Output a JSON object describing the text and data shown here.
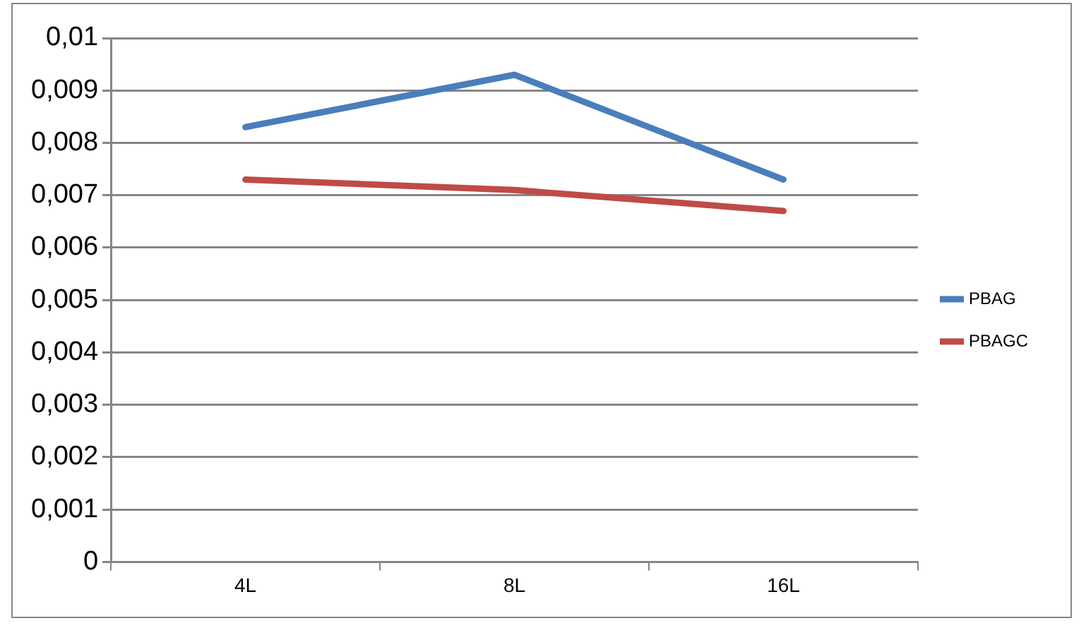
{
  "chart_data": {
    "type": "line",
    "categories": [
      "4L",
      "8L",
      "16L"
    ],
    "series": [
      {
        "name": "PBAG",
        "color": "#4a7ebb",
        "values": [
          0.0083,
          0.0093,
          0.0073
        ]
      },
      {
        "name": "PBAGC",
        "color": "#be4b48",
        "values": [
          0.0073,
          0.0071,
          0.0067
        ]
      }
    ],
    "ylim": [
      0,
      0.01
    ],
    "yticks": [
      {
        "value": 0,
        "label": "0"
      },
      {
        "value": 0.001,
        "label": "0,001"
      },
      {
        "value": 0.002,
        "label": "0,002"
      },
      {
        "value": 0.003,
        "label": "0,003"
      },
      {
        "value": 0.004,
        "label": "0,004"
      },
      {
        "value": 0.005,
        "label": "0,005"
      },
      {
        "value": 0.006,
        "label": "0,006"
      },
      {
        "value": 0.007,
        "label": "0,007"
      },
      {
        "value": 0.008,
        "label": "0,008"
      },
      {
        "value": 0.009,
        "label": "0,009"
      },
      {
        "value": 0.01,
        "label": "0,01"
      }
    ],
    "grid": "y",
    "legend": "right",
    "marker": "none",
    "line_style": "solid"
  }
}
